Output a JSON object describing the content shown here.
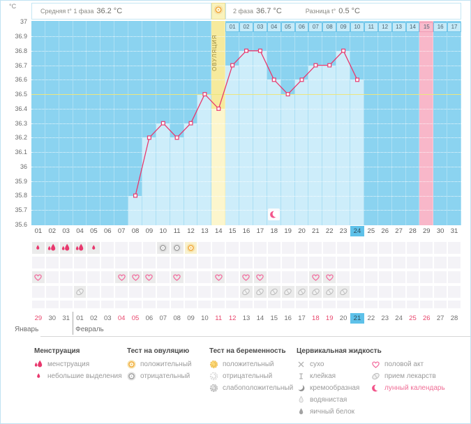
{
  "unit_label": "°C",
  "header": {
    "phase1_label": "Средняя t° 1 фаза",
    "phase1_value": "36.2 °C",
    "phase2_label": "2 фаза",
    "phase2_value": "36.7 °C",
    "diff_label": "Разница t°",
    "diff_value": "0.5 °C",
    "ovulation_band_label": "ОВУЛЯЦИЯ"
  },
  "chart_data": {
    "type": "line",
    "title": "Basal body temperature cycle chart",
    "ylabel": "°C",
    "ylim": [
      35.6,
      37.0
    ],
    "ytick_labels": [
      "37",
      "36.9",
      "36.8",
      "36.7",
      "36.6",
      "36.5",
      "36.4",
      "36.3",
      "36.2",
      "36.1",
      "36",
      "35.9",
      "35.8",
      "35.7",
      "35.6"
    ],
    "coverline_temp": 36.5,
    "x_labels": [
      "01",
      "02",
      "03",
      "04",
      "05",
      "06",
      "07",
      "08",
      "09",
      "10",
      "11",
      "12",
      "13",
      "14",
      "15",
      "16",
      "17",
      "18",
      "19",
      "20",
      "21",
      "22",
      "23",
      "24",
      "25",
      "26",
      "27",
      "28",
      "29",
      "30",
      "31"
    ],
    "phase2_day_labels": [
      "01",
      "02",
      "03",
      "04",
      "05",
      "06",
      "07",
      "08",
      "09",
      "10",
      "11",
      "12",
      "13",
      "14",
      "15",
      "16",
      "17"
    ],
    "phase2_marked_label": "15",
    "ovulation_cycle_day": 14,
    "predicted_cycle_day": 29,
    "today_cycle_day": 24,
    "moon_marker_day": 18,
    "series": [
      {
        "name": "temperature",
        "points": [
          {
            "day": 8,
            "temp": 35.8
          },
          {
            "day": 9,
            "temp": 36.2
          },
          {
            "day": 10,
            "temp": 36.3
          },
          {
            "day": 11,
            "temp": 36.2
          },
          {
            "day": 12,
            "temp": 36.3
          },
          {
            "day": 13,
            "temp": 36.5
          },
          {
            "day": 14,
            "temp": 36.4
          },
          {
            "day": 15,
            "temp": 36.7
          },
          {
            "day": 16,
            "temp": 36.8
          },
          {
            "day": 17,
            "temp": 36.8
          },
          {
            "day": 18,
            "temp": 36.6
          },
          {
            "day": 19,
            "temp": 36.5
          },
          {
            "day": 20,
            "temp": 36.6
          },
          {
            "day": 21,
            "temp": 36.7
          },
          {
            "day": 22,
            "temp": 36.7
          },
          {
            "day": 23,
            "temp": 36.8
          },
          {
            "day": 24,
            "temp": 36.6
          }
        ]
      }
    ],
    "colors": {
      "line": "#e8386d",
      "coverline": "#ece67e",
      "bg_nodata": "#8bd3f0",
      "bg_data": "#cdedfa",
      "ovulation_band": "#f6ea9d",
      "ovulation_band_light": "#fcf6cd",
      "predicted_band": "#f8b7c9",
      "today_highlight": "#5ec1e9"
    }
  },
  "events": {
    "menstruation_heavy_days": [
      2,
      3,
      4
    ],
    "menstruation_light_days": [
      1,
      5
    ],
    "ovulation_test_negative_days": [
      10,
      11
    ],
    "ovulation_test_positive_days": [
      12
    ],
    "intercourse_days": [
      1,
      7,
      8,
      9,
      11,
      14,
      16,
      17,
      21,
      22
    ],
    "medication_days": [
      4,
      16,
      17,
      18,
      19,
      20,
      21,
      22,
      23
    ]
  },
  "calendar": {
    "month_labels": [
      "Январь",
      "Февраль"
    ],
    "dates": [
      {
        "label": "29",
        "red": true
      },
      {
        "label": "30"
      },
      {
        "label": "31"
      },
      {
        "label": "01"
      },
      {
        "label": "02"
      },
      {
        "label": "03"
      },
      {
        "label": "04",
        "red": true
      },
      {
        "label": "05",
        "red": true
      },
      {
        "label": "06"
      },
      {
        "label": "07"
      },
      {
        "label": "08"
      },
      {
        "label": "09"
      },
      {
        "label": "10"
      },
      {
        "label": "11",
        "red": true
      },
      {
        "label": "12",
        "red": true
      },
      {
        "label": "13"
      },
      {
        "label": "14"
      },
      {
        "label": "15"
      },
      {
        "label": "16"
      },
      {
        "label": "17"
      },
      {
        "label": "18",
        "red": true
      },
      {
        "label": "19",
        "red": true
      },
      {
        "label": "20"
      },
      {
        "label": "21",
        "today": true
      },
      {
        "label": "22"
      },
      {
        "label": "23"
      },
      {
        "label": "24"
      },
      {
        "label": "25",
        "red": true
      },
      {
        "label": "26",
        "red": true
      },
      {
        "label": "27"
      },
      {
        "label": "28"
      }
    ],
    "month_divider_after_index": 2
  },
  "legend": {
    "groups": [
      {
        "title": "Менструация",
        "items": [
          {
            "icon": "menses-heavy",
            "label": "менструация"
          },
          {
            "icon": "menses-light",
            "label": "небольшие выделения"
          }
        ]
      },
      {
        "title": "Тест на овуляцию",
        "items": [
          {
            "icon": "ovulation-test-positive",
            "label": "положительный"
          },
          {
            "icon": "ovulation-test-negative",
            "label": "отрицательный"
          }
        ]
      },
      {
        "title": "Тест на беременность",
        "items": [
          {
            "icon": "pregnancy-test-positive",
            "label": "положительный"
          },
          {
            "icon": "pregnancy-test-negative",
            "label": "отрицательный"
          },
          {
            "icon": "pregnancy-test-weak",
            "label": "слабоположительный"
          }
        ]
      },
      {
        "title": "Цервикальная жидкость",
        "items": [
          {
            "icon": "cf-dry",
            "label": "сухо"
          },
          {
            "icon": "cf-sticky",
            "label": "клейкая"
          },
          {
            "icon": "cf-creamy",
            "label": "кремообразная"
          },
          {
            "icon": "cf-watery",
            "label": "водянистая"
          },
          {
            "icon": "cf-eggwhite",
            "label": "яичный белок"
          }
        ]
      },
      {
        "title": "",
        "items": [
          {
            "icon": "intercourse",
            "label": "половой акт"
          },
          {
            "icon": "medication",
            "label": "прием лекарств"
          },
          {
            "icon": "lunar",
            "label": "лунный календарь",
            "pink": true
          }
        ]
      }
    ]
  }
}
